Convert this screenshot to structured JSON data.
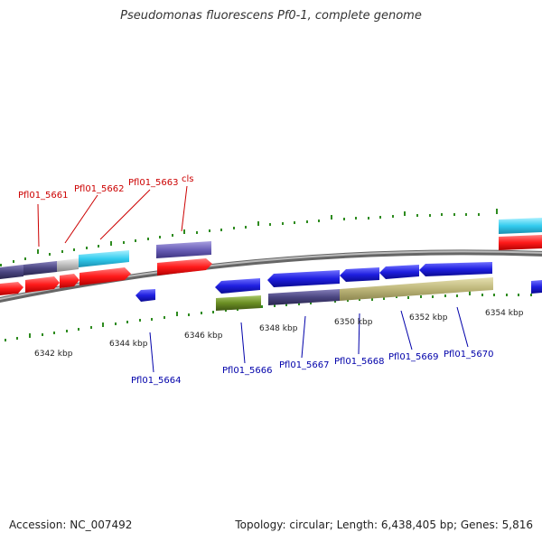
{
  "title": "Pseudomonas fluorescens Pf0-1, complete genome",
  "footer": {
    "accession": "Accession: NC_007492",
    "topology": "Topology: circular; Length: 6,438,405 bp; Genes: 5,816"
  },
  "scale_labels": [
    "6342 kbp",
    "6344 kbp",
    "6346 kbp",
    "6348 kbp",
    "6350 kbp",
    "6352 kbp",
    "6354 kbp"
  ],
  "gene_labels_top": [
    "Pfl01_5661",
    "Pfl01_5662",
    "Pfl01_5663",
    "cls"
  ],
  "gene_labels_bottom": [
    "Pfl01_5664",
    "Pfl01_5666",
    "Pfl01_5667",
    "Pfl01_5668",
    "Pfl01_5669",
    "Pfl01_5670"
  ],
  "colors": {
    "forward_label": "#cc0000",
    "reverse_label": "#0000aa",
    "red_gene": "#ff1a1a",
    "blue_gene": "#1f1fe0",
    "cyan_gene": "#33ccee",
    "purple_gene": "#6a5fb8",
    "navy_gene": "#4a4580",
    "khaki_gene": "#bdb67a",
    "green_gene": "#6b8e23",
    "gray_gene": "#bbbbbb",
    "backbone": "#888888",
    "ticks": "#2e8b1f"
  }
}
